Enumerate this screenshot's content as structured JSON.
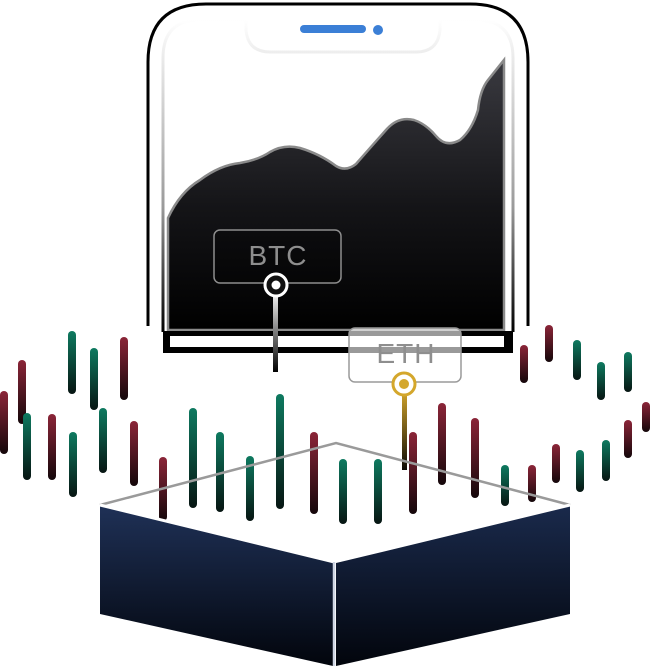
{
  "tags": {
    "btc": {
      "label": "BTC",
      "color": "#ffffff"
    },
    "eth": {
      "label": "ETH",
      "color": "#c9a02c"
    }
  },
  "colors": {
    "candle_up": "#0d6b56",
    "candle_down": "#7a2132",
    "phone_frame": "#000000",
    "notch_bar": "#3b7fd6",
    "screen_dark": "#111114",
    "platform_top": "#1e2e4e",
    "platform_bottom": "#030711"
  },
  "icons": [
    "phone-illustration",
    "area-chart-graphic",
    "candlestick-pattern",
    "platform-box"
  ]
}
